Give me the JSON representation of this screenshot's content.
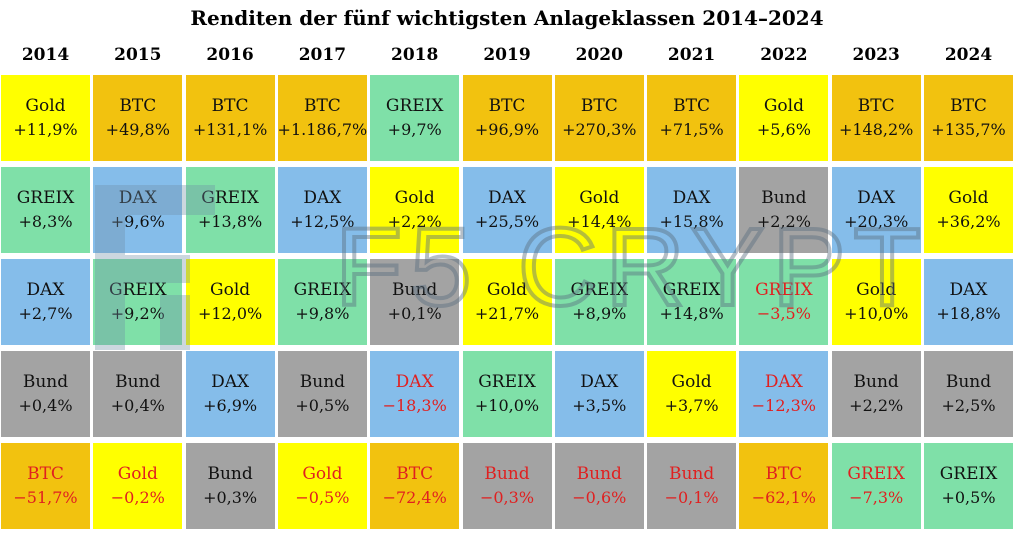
{
  "title": "Renditen der fünf wichtigsten Anlageklassen 2014–2024",
  "watermark_text": "F5 CRYPTO",
  "colors": {
    "BTC": "#f2c20f",
    "Gold": "#ffff00",
    "GREIX": "#7fe0a8",
    "DAX": "#85bdea",
    "Bund": "#a3a3a3",
    "negative_text": "#e02020"
  },
  "chart_data": {
    "type": "table",
    "title": "Renditen der fünf wichtigsten Anlageklassen 2014–2024",
    "columns": [
      {
        "year": "2014",
        "cells": [
          {
            "asset": "Gold",
            "value_label": "+11,9%",
            "value": 11.9
          },
          {
            "asset": "GREIX",
            "value_label": "+8,3%",
            "value": 8.3
          },
          {
            "asset": "DAX",
            "value_label": "+2,7%",
            "value": 2.7
          },
          {
            "asset": "Bund",
            "value_label": "+0,4%",
            "value": 0.4
          },
          {
            "asset": "BTC",
            "value_label": "−51,7%",
            "value": -51.7
          }
        ]
      },
      {
        "year": "2015",
        "cells": [
          {
            "asset": "BTC",
            "value_label": "+49,8%",
            "value": 49.8
          },
          {
            "asset": "DAX",
            "value_label": "+9,6%",
            "value": 9.6
          },
          {
            "asset": "GREIX",
            "value_label": "+9,2%",
            "value": 9.2
          },
          {
            "asset": "Bund",
            "value_label": "+0,4%",
            "value": 0.4
          },
          {
            "asset": "Gold",
            "value_label": "−0,2%",
            "value": -0.2
          }
        ]
      },
      {
        "year": "2016",
        "cells": [
          {
            "asset": "BTC",
            "value_label": "+131,1%",
            "value": 131.1
          },
          {
            "asset": "GREIX",
            "value_label": "+13,8%",
            "value": 13.8
          },
          {
            "asset": "Gold",
            "value_label": "+12,0%",
            "value": 12.0
          },
          {
            "asset": "DAX",
            "value_label": "+6,9%",
            "value": 6.9
          },
          {
            "asset": "Bund",
            "value_label": "+0,3%",
            "value": 0.3
          }
        ]
      },
      {
        "year": "2017",
        "cells": [
          {
            "asset": "BTC",
            "value_label": "+1.186,7%",
            "value": 1186.7
          },
          {
            "asset": "DAX",
            "value_label": "+12,5%",
            "value": 12.5
          },
          {
            "asset": "GREIX",
            "value_label": "+9,8%",
            "value": 9.8
          },
          {
            "asset": "Bund",
            "value_label": "+0,5%",
            "value": 0.5
          },
          {
            "asset": "Gold",
            "value_label": "−0,5%",
            "value": -0.5
          }
        ]
      },
      {
        "year": "2018",
        "cells": [
          {
            "asset": "GREIX",
            "value_label": "+9,7%",
            "value": 9.7
          },
          {
            "asset": "Gold",
            "value_label": "+2,2%",
            "value": 2.2
          },
          {
            "asset": "Bund",
            "value_label": "+0,1%",
            "value": 0.1
          },
          {
            "asset": "DAX",
            "value_label": "−18,3%",
            "value": -18.3
          },
          {
            "asset": "BTC",
            "value_label": "−72,4%",
            "value": -72.4
          }
        ]
      },
      {
        "year": "2019",
        "cells": [
          {
            "asset": "BTC",
            "value_label": "+96,9%",
            "value": 96.9
          },
          {
            "asset": "DAX",
            "value_label": "+25,5%",
            "value": 25.5
          },
          {
            "asset": "Gold",
            "value_label": "+21,7%",
            "value": 21.7
          },
          {
            "asset": "GREIX",
            "value_label": "+10,0%",
            "value": 10.0
          },
          {
            "asset": "Bund",
            "value_label": "−0,3%",
            "value": -0.3
          }
        ]
      },
      {
        "year": "2020",
        "cells": [
          {
            "asset": "BTC",
            "value_label": "+270,3%",
            "value": 270.3
          },
          {
            "asset": "Gold",
            "value_label": "+14,4%",
            "value": 14.4
          },
          {
            "asset": "GREIX",
            "value_label": "+8,9%",
            "value": 8.9
          },
          {
            "asset": "DAX",
            "value_label": "+3,5%",
            "value": 3.5
          },
          {
            "asset": "Bund",
            "value_label": "−0,6%",
            "value": -0.6
          }
        ]
      },
      {
        "year": "2021",
        "cells": [
          {
            "asset": "BTC",
            "value_label": "+71,5%",
            "value": 71.5
          },
          {
            "asset": "DAX",
            "value_label": "+15,8%",
            "value": 15.8
          },
          {
            "asset": "GREIX",
            "value_label": "+14,8%",
            "value": 14.8
          },
          {
            "asset": "Gold",
            "value_label": "+3,7%",
            "value": 3.7
          },
          {
            "asset": "Bund",
            "value_label": "−0,1%",
            "value": -0.1
          }
        ]
      },
      {
        "year": "2022",
        "cells": [
          {
            "asset": "Gold",
            "value_label": "+5,6%",
            "value": 5.6
          },
          {
            "asset": "Bund",
            "value_label": "+2,2%",
            "value": 2.2
          },
          {
            "asset": "GREIX",
            "value_label": "−3,5%",
            "value": -3.5
          },
          {
            "asset": "DAX",
            "value_label": "−12,3%",
            "value": -12.3
          },
          {
            "asset": "BTC",
            "value_label": "−62,1%",
            "value": -62.1
          }
        ]
      },
      {
        "year": "2023",
        "cells": [
          {
            "asset": "BTC",
            "value_label": "+148,2%",
            "value": 148.2
          },
          {
            "asset": "DAX",
            "value_label": "+20,3%",
            "value": 20.3
          },
          {
            "asset": "Gold",
            "value_label": "+10,0%",
            "value": 10.0
          },
          {
            "asset": "Bund",
            "value_label": "+2,2%",
            "value": 2.2
          },
          {
            "asset": "GREIX",
            "value_label": "−7,3%",
            "value": -7.3
          }
        ]
      },
      {
        "year": "2024",
        "cells": [
          {
            "asset": "BTC",
            "value_label": "+135,7%",
            "value": 135.7
          },
          {
            "asset": "Gold",
            "value_label": "+36,2%",
            "value": 36.2
          },
          {
            "asset": "DAX",
            "value_label": "+18,8%",
            "value": 18.8
          },
          {
            "asset": "Bund",
            "value_label": "+2,5%",
            "value": 2.5
          },
          {
            "asset": "GREIX",
            "value_label": "+0,5%",
            "value": 0.5
          }
        ]
      }
    ]
  }
}
